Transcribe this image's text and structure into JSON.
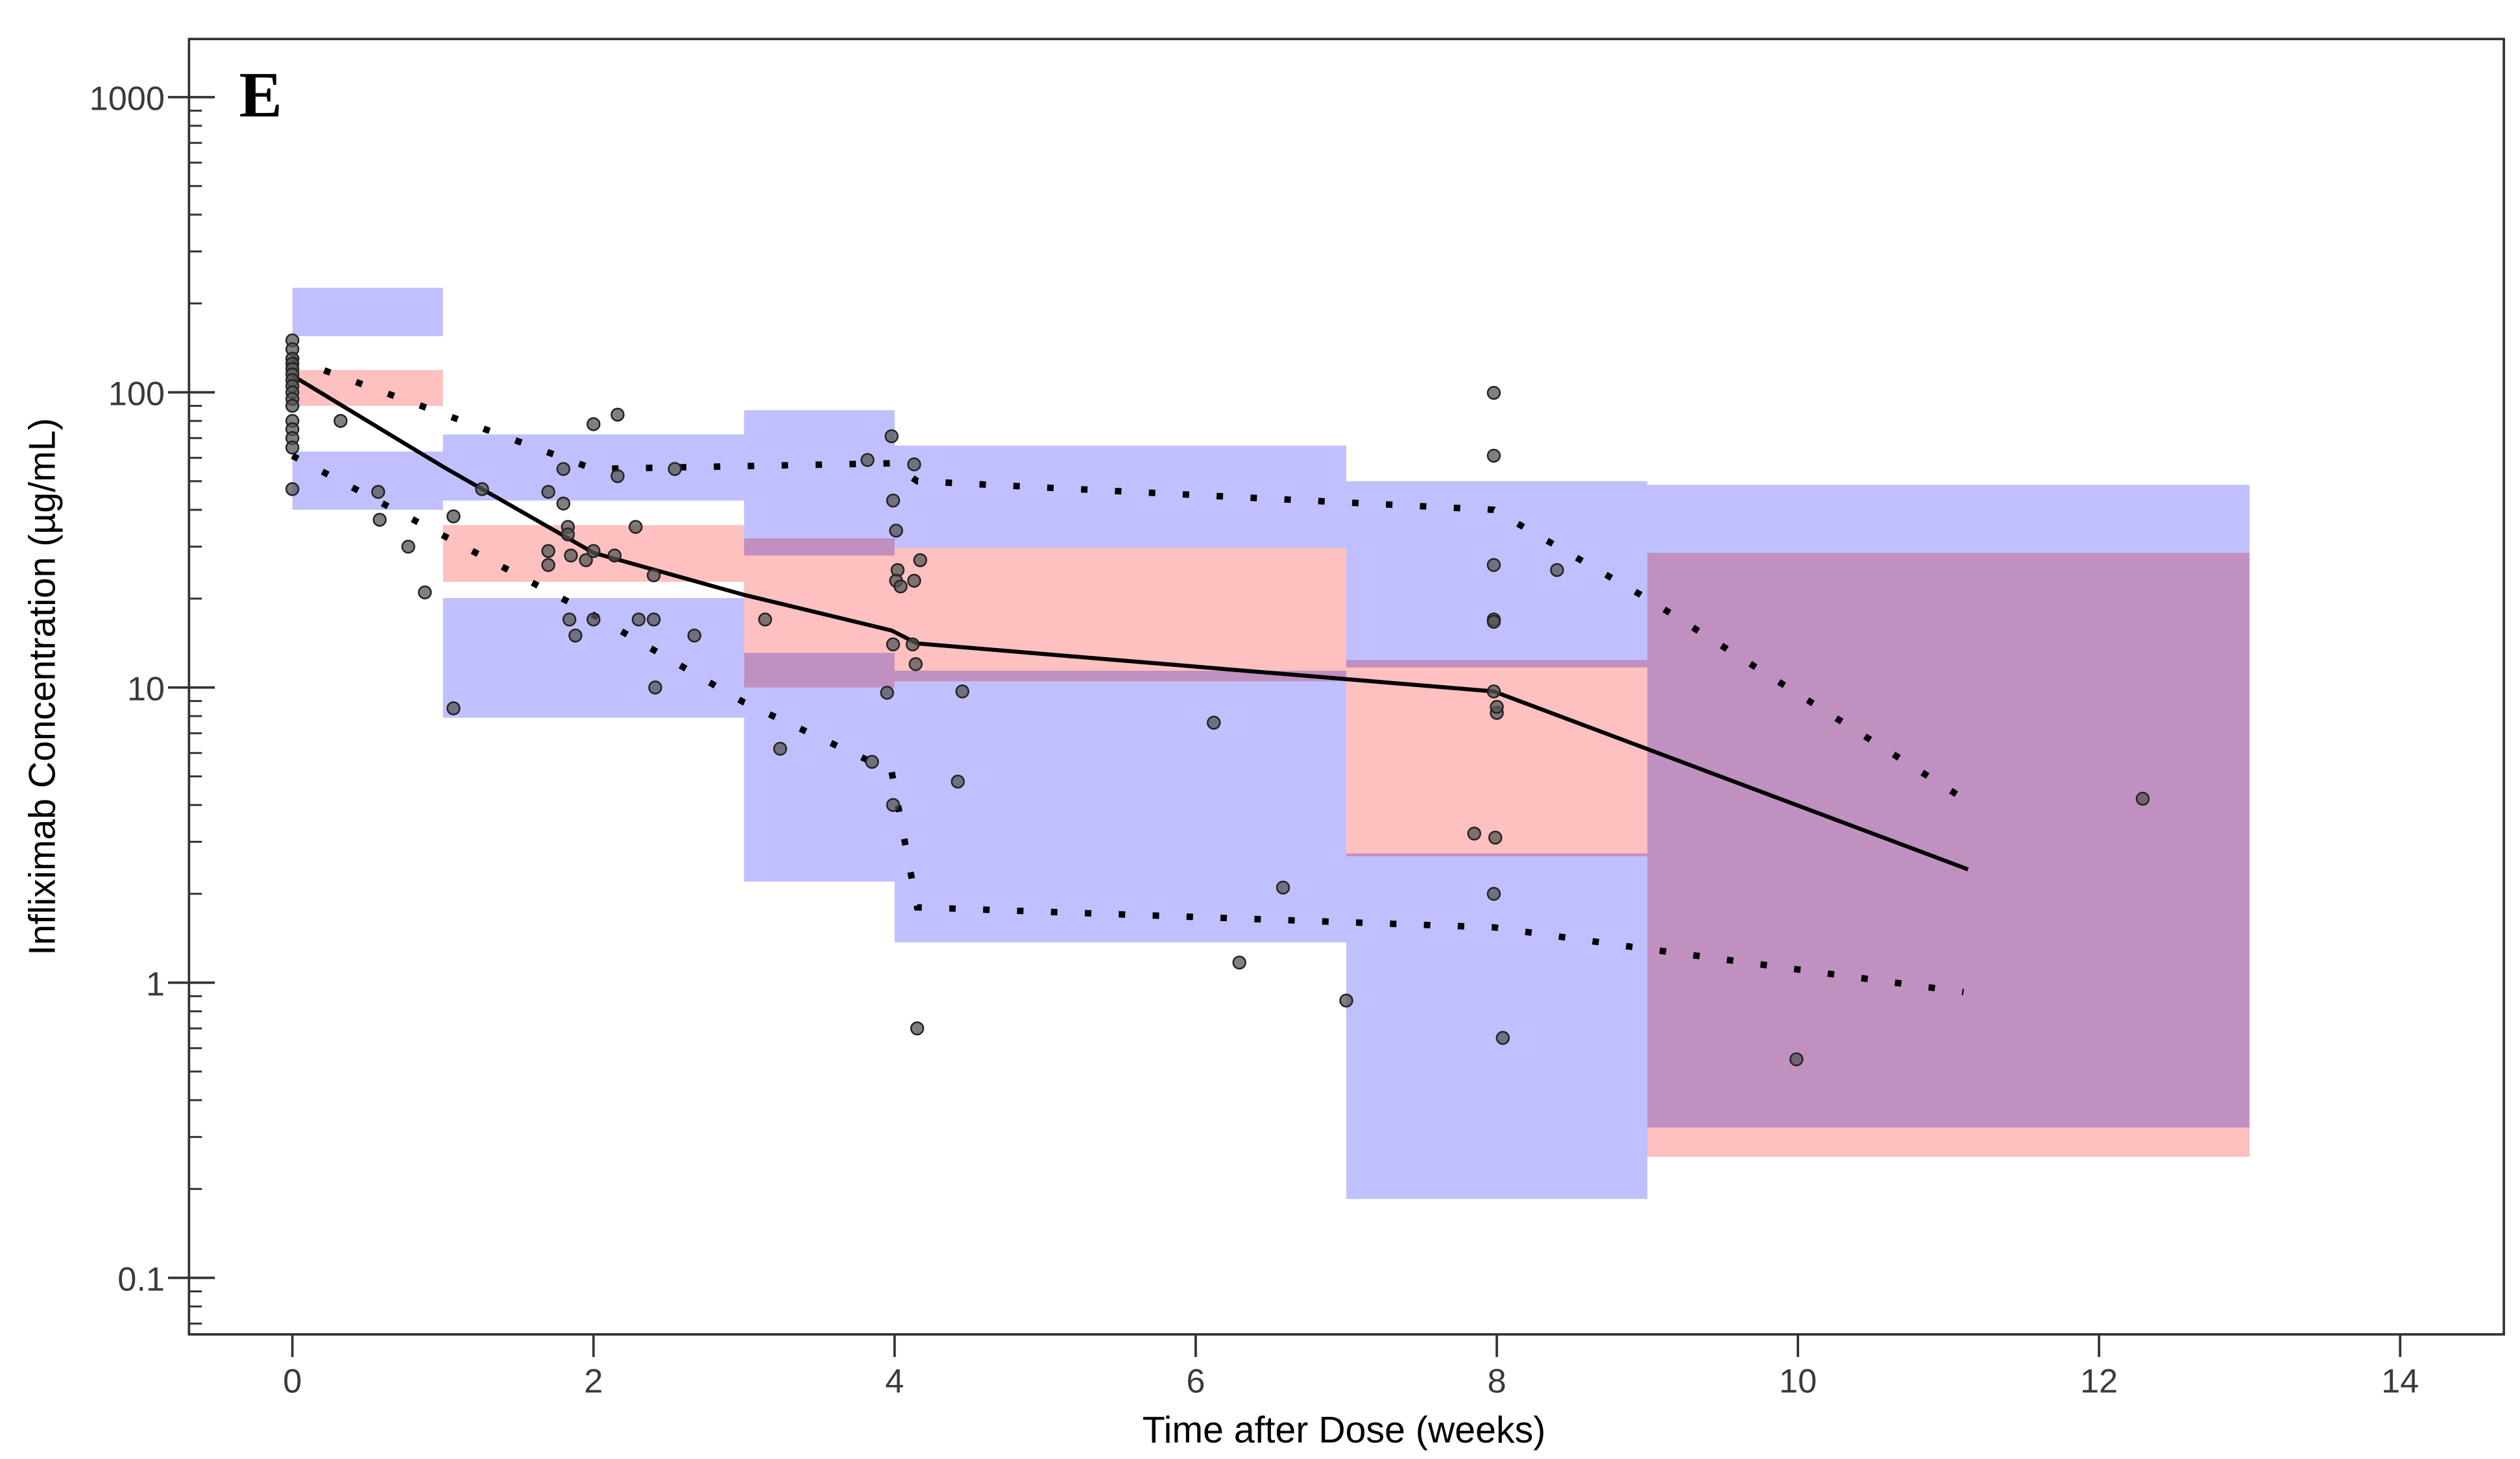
{
  "chart_data": {
    "type": "scatter",
    "panel_label": "E",
    "xlabel": "Time after Dose (weeks)",
    "ylabel": "Infliximab Concentration (µg/mL)",
    "xlim": [
      -0.7,
      14.7
    ],
    "ylim": [
      0.065,
      1500
    ],
    "yscale": "log",
    "xticks": [
      0,
      2,
      4,
      6,
      8,
      10,
      12,
      14
    ],
    "yticks": [
      0.1,
      1,
      10,
      100,
      1000
    ],
    "ytick_labels": [
      "0.1",
      "1",
      "10",
      "100",
      "1000"
    ],
    "grid": false,
    "legend": "none",
    "colors": {
      "outer_band": "#c0c0ff",
      "median_band": "#ffc0c0",
      "overlap": "#c090c8",
      "points": "#555555",
      "lines": "#000000"
    },
    "bands": [
      {
        "x": [
          0,
          1
        ],
        "upper_pi_ci": [
          155,
          226
        ],
        "median_ci": [
          90,
          119
        ],
        "lower_pi_ci": [
          40,
          63
        ]
      },
      {
        "x": [
          1,
          3
        ],
        "upper_pi_ci": [
          43,
          72
        ],
        "median_ci": [
          22.8,
          35.5
        ],
        "lower_pi_ci": [
          7.9,
          20.1
        ]
      },
      {
        "x": [
          3,
          4
        ],
        "upper_pi_ci": [
          28,
          87
        ],
        "median_ci": [
          10,
          32
        ],
        "lower_pi_ci": [
          2.2,
          13.1
        ]
      },
      {
        "x": [
          4,
          7
        ],
        "upper_pi_ci": [
          29.7,
          66
        ],
        "median_ci": [
          10.5,
          29.7
        ],
        "lower_pi_ci": [
          1.37,
          11.4
        ]
      },
      {
        "x": [
          7,
          9
        ],
        "upper_pi_ci": [
          11.7,
          50
        ],
        "median_ci": [
          2.68,
          12.4
        ],
        "lower_pi_ci": [
          0.185,
          2.74
        ]
      },
      {
        "x": [
          9,
          13
        ],
        "upper_pi_ci": [
          28.6,
          48.6
        ],
        "median_ci": [
          0.257,
          28.6
        ],
        "lower_pi_ci": [
          0.323,
          28.6
        ]
      }
    ],
    "observed_median": {
      "x": [
        0,
        1,
        2,
        3,
        3.98,
        4.15,
        7.98,
        11.13
      ],
      "y": [
        114,
        56,
        28.6,
        20.6,
        15.6,
        14.1,
        9.7,
        2.42
      ]
    },
    "observed_p95": {
      "x": [
        0,
        2,
        3.98,
        4.15,
        7.98,
        9,
        11.1
      ],
      "y": [
        130,
        55,
        57.5,
        50,
        40,
        20,
        4.2
      ]
    },
    "observed_p5": {
      "x": [
        0,
        2,
        3,
        3.98,
        4.15,
        7.98,
        9,
        11.1
      ],
      "y": [
        61,
        17.6,
        8.9,
        5.2,
        1.8,
        1.54,
        1.3,
        0.93
      ]
    },
    "points": [
      [
        0,
        150
      ],
      [
        0,
        140
      ],
      [
        0,
        130
      ],
      [
        0,
        125
      ],
      [
        0,
        120
      ],
      [
        0,
        115
      ],
      [
        0,
        110
      ],
      [
        0,
        105
      ],
      [
        0,
        100
      ],
      [
        0,
        95
      ],
      [
        0,
        90
      ],
      [
        0,
        80
      ],
      [
        0,
        75
      ],
      [
        0,
        70
      ],
      [
        0,
        65
      ],
      [
        0,
        47
      ],
      [
        0.32,
        80
      ],
      [
        0.57,
        46
      ],
      [
        0.58,
        37
      ],
      [
        0.77,
        30
      ],
      [
        0.88,
        21
      ],
      [
        1.07,
        38
      ],
      [
        1.07,
        8.5
      ],
      [
        1.26,
        47
      ],
      [
        1.7,
        29
      ],
      [
        1.7,
        26
      ],
      [
        1.7,
        46
      ],
      [
        1.8,
        55
      ],
      [
        1.8,
        42
      ],
      [
        1.83,
        35
      ],
      [
        1.83,
        33
      ],
      [
        1.85,
        28
      ],
      [
        1.88,
        15
      ],
      [
        1.84,
        17
      ],
      [
        1.95,
        27
      ],
      [
        2.0,
        29
      ],
      [
        2.0,
        17
      ],
      [
        2.0,
        78
      ],
      [
        2.16,
        84
      ],
      [
        2.16,
        52
      ],
      [
        2.14,
        28
      ],
      [
        2.28,
        35
      ],
      [
        2.3,
        17
      ],
      [
        2.4,
        24
      ],
      [
        2.4,
        17
      ],
      [
        2.41,
        10
      ],
      [
        2.67,
        15
      ],
      [
        2.54,
        55
      ],
      [
        3.14,
        17
      ],
      [
        3.24,
        6.2
      ],
      [
        3.82,
        59
      ],
      [
        3.85,
        5.6
      ],
      [
        3.95,
        9.6
      ],
      [
        3.98,
        71
      ],
      [
        3.99,
        43
      ],
      [
        4.01,
        34
      ],
      [
        4.02,
        25
      ],
      [
        4.01,
        23
      ],
      [
        4.04,
        22
      ],
      [
        3.99,
        4.0
      ],
      [
        3.99,
        14
      ],
      [
        4.13,
        57
      ],
      [
        4.15,
        0.7
      ],
      [
        4.17,
        27
      ],
      [
        4.13,
        23
      ],
      [
        4.12,
        14
      ],
      [
        4.14,
        12
      ],
      [
        4.42,
        4.8
      ],
      [
        4.45,
        9.7
      ],
      [
        6.12,
        7.6
      ],
      [
        6.58,
        2.1
      ],
      [
        6.29,
        1.17
      ],
      [
        7.0,
        0.87
      ],
      [
        7.98,
        99.6
      ],
      [
        7.98,
        61
      ],
      [
        7.98,
        26
      ],
      [
        7.98,
        17
      ],
      [
        7.98,
        16.7
      ],
      [
        7.98,
        9.7
      ],
      [
        8.0,
        8.2
      ],
      [
        8.0,
        8.6
      ],
      [
        7.85,
        3.2
      ],
      [
        7.99,
        3.1
      ],
      [
        7.98,
        2.0
      ],
      [
        8.04,
        0.65
      ],
      [
        8.4,
        25
      ],
      [
        9.99,
        0.55
      ],
      [
        12.29,
        4.2
      ]
    ]
  }
}
